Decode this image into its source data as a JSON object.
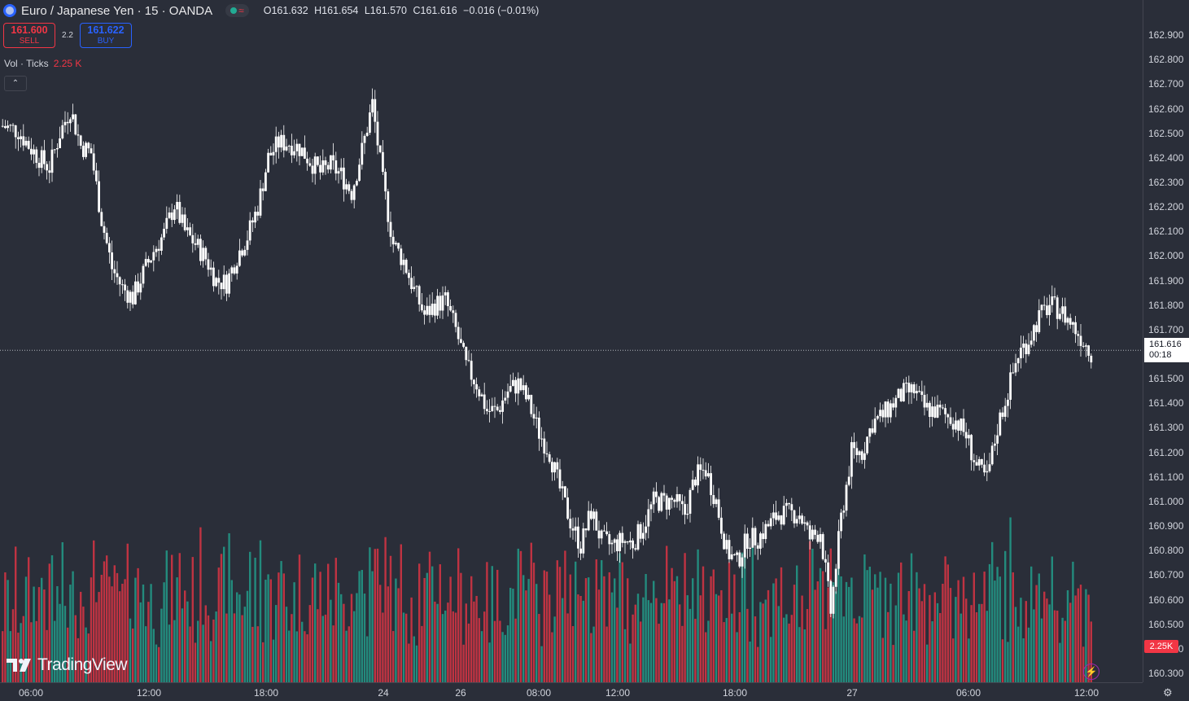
{
  "header": {
    "title": "Euro / Japanese Yen · 15 · OANDA",
    "ohlc": {
      "open": "O161.632",
      "high": "H161.654",
      "low": "L161.570",
      "close": "C161.616",
      "change": "−0.016 (−0.01%)"
    },
    "status_icon": "≈"
  },
  "trade": {
    "sell_price": "161.600",
    "sell_label": "SELL",
    "spread": "2.2",
    "buy_price": "161.622",
    "buy_label": "BUY"
  },
  "volume_legend": {
    "label": "Vol · Ticks",
    "value": "2.25 K"
  },
  "current_price_label": {
    "price": "161.616",
    "countdown": "00:18"
  },
  "volume_axis_label": "2.25K",
  "logo_text": "TradingView",
  "colors": {
    "background": "#2a2e39",
    "up_volume": "#22ab94",
    "down_volume": "#f23645",
    "candle": "#ffffff",
    "sell": "#f23645",
    "buy": "#2962ff"
  },
  "price_axis": [
    "162.900",
    "162.800",
    "162.700",
    "162.600",
    "162.500",
    "162.400",
    "162.300",
    "162.200",
    "162.100",
    "162.000",
    "161.900",
    "161.800",
    "161.700",
    "161.600",
    "161.500",
    "161.400",
    "161.300",
    "161.200",
    "161.100",
    "161.000",
    "160.900",
    "160.800",
    "160.700",
    "160.600",
    "160.500",
    "160.400",
    "160.300"
  ],
  "time_axis": [
    "06:00",
    "12:00",
    "18:00",
    "24",
    "26",
    "08:00",
    "12:00",
    "18:00",
    "27",
    "06:00",
    "12:00"
  ],
  "chart_data": {
    "type": "candlestick",
    "symbol": "Euro / Japanese Yen",
    "interval": "15",
    "ylim": [
      160.28,
      162.97
    ],
    "last_price": 161.616,
    "close_path": [
      [
        0,
        162.53
      ],
      [
        6,
        162.51
      ],
      [
        10,
        162.45
      ],
      [
        14,
        162.4
      ],
      [
        18,
        162.36
      ],
      [
        22,
        162.5
      ],
      [
        26,
        162.6
      ],
      [
        30,
        162.45
      ],
      [
        34,
        162.42
      ],
      [
        38,
        162.15
      ],
      [
        42,
        161.95
      ],
      [
        46,
        161.87
      ],
      [
        50,
        161.83
      ],
      [
        54,
        161.93
      ],
      [
        58,
        162.02
      ],
      [
        62,
        162.09
      ],
      [
        66,
        162.21
      ],
      [
        70,
        162.1
      ],
      [
        74,
        162.05
      ],
      [
        78,
        161.99
      ],
      [
        82,
        161.9
      ],
      [
        86,
        161.89
      ],
      [
        90,
        162.0
      ],
      [
        94,
        162.08
      ],
      [
        98,
        162.2
      ],
      [
        102,
        162.4
      ],
      [
        106,
        162.46
      ],
      [
        110,
        162.46
      ],
      [
        114,
        162.44
      ],
      [
        118,
        162.39
      ],
      [
        122,
        162.34
      ],
      [
        126,
        162.37
      ],
      [
        130,
        162.33
      ],
      [
        134,
        162.26
      ],
      [
        138,
        162.43
      ],
      [
        142,
        162.62
      ],
      [
        146,
        162.3
      ],
      [
        150,
        162.05
      ],
      [
        154,
        161.98
      ],
      [
        158,
        161.86
      ],
      [
        162,
        161.76
      ],
      [
        166,
        161.8
      ],
      [
        170,
        161.82
      ],
      [
        174,
        161.7
      ],
      [
        178,
        161.55
      ],
      [
        182,
        161.48
      ],
      [
        186,
        161.37
      ],
      [
        190,
        161.37
      ],
      [
        194,
        161.45
      ],
      [
        198,
        161.48
      ],
      [
        202,
        161.4
      ],
      [
        206,
        161.28
      ],
      [
        210,
        161.2
      ],
      [
        214,
        161.05
      ],
      [
        218,
        160.92
      ],
      [
        222,
        160.82
      ],
      [
        226,
        160.96
      ],
      [
        230,
        160.84
      ],
      [
        234,
        160.82
      ],
      [
        238,
        160.84
      ],
      [
        242,
        160.83
      ],
      [
        246,
        160.9
      ],
      [
        250,
        161.0
      ],
      [
        254,
        161.0
      ],
      [
        258,
        161.0
      ],
      [
        262,
        160.95
      ],
      [
        266,
        161.1
      ],
      [
        270,
        161.13
      ],
      [
        274,
        161.0
      ],
      [
        278,
        160.8
      ],
      [
        282,
        160.75
      ],
      [
        286,
        160.85
      ],
      [
        290,
        160.85
      ],
      [
        294,
        160.9
      ],
      [
        298,
        160.95
      ],
      [
        302,
        160.95
      ],
      [
        306,
        160.95
      ],
      [
        310,
        160.85
      ],
      [
        314,
        160.88
      ],
      [
        318,
        160.55
      ],
      [
        322,
        160.93
      ],
      [
        326,
        161.2
      ],
      [
        330,
        161.2
      ],
      [
        334,
        161.32
      ],
      [
        338,
        161.35
      ],
      [
        342,
        161.4
      ],
      [
        346,
        161.44
      ],
      [
        350,
        161.45
      ],
      [
        354,
        161.38
      ],
      [
        358,
        161.37
      ],
      [
        362,
        161.35
      ],
      [
        366,
        161.33
      ],
      [
        370,
        161.27
      ],
      [
        374,
        161.14
      ],
      [
        378,
        161.09
      ],
      [
        382,
        161.3
      ],
      [
        386,
        161.45
      ],
      [
        390,
        161.6
      ],
      [
        394,
        161.66
      ],
      [
        398,
        161.75
      ],
      [
        402,
        161.8
      ],
      [
        406,
        161.78
      ],
      [
        410,
        161.73
      ],
      [
        414,
        161.67
      ],
      [
        418,
        161.61
      ]
    ],
    "volume_max": 3500
  }
}
